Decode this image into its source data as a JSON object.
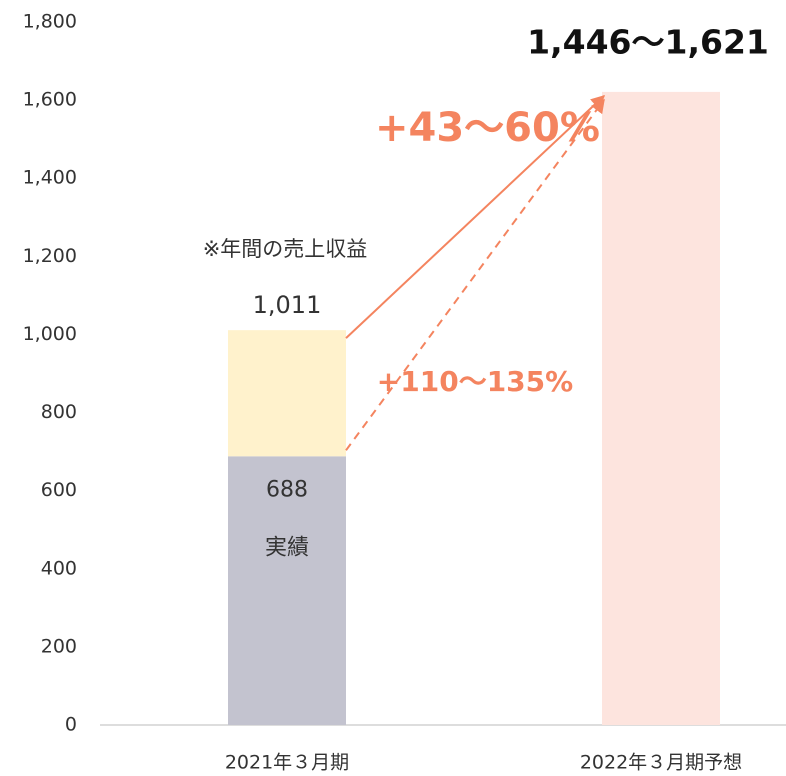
{
  "chart_data": {
    "type": "bar",
    "stacked": true,
    "categories": [
      "2021年３月期",
      "2022年３月期予想"
    ],
    "series": [
      {
        "name": "実績",
        "color": "#c3c3cf",
        "values": [
          688,
          null
        ]
      },
      {
        "color": "#fff2cc",
        "values": [
          323,
          null
        ]
      },
      {
        "color": "#fde4de",
        "values": [
          null,
          1621
        ]
      }
    ],
    "totals": {
      "values": [
        1011,
        null
      ],
      "value_labels": [
        "1,011",
        null
      ]
    },
    "range_label": "1,446〜1,621",
    "annotations": [
      "※年間の売上収益",
      "+43〜60%",
      "+110〜135%"
    ],
    "annotation_color": "#f4845f",
    "ylim": [
      0,
      1800
    ],
    "yticks": [
      0,
      200,
      400,
      600,
      800,
      {
        "value": 1000,
        "label": "1,000"
      },
      {
        "value": 1200,
        "label": "1,200"
      },
      {
        "value": 1400,
        "label": "1,400"
      },
      {
        "value": 1600,
        "label": "1,600"
      },
      {
        "value": 1800,
        "label": "1,800"
      }
    ],
    "grid": false
  }
}
